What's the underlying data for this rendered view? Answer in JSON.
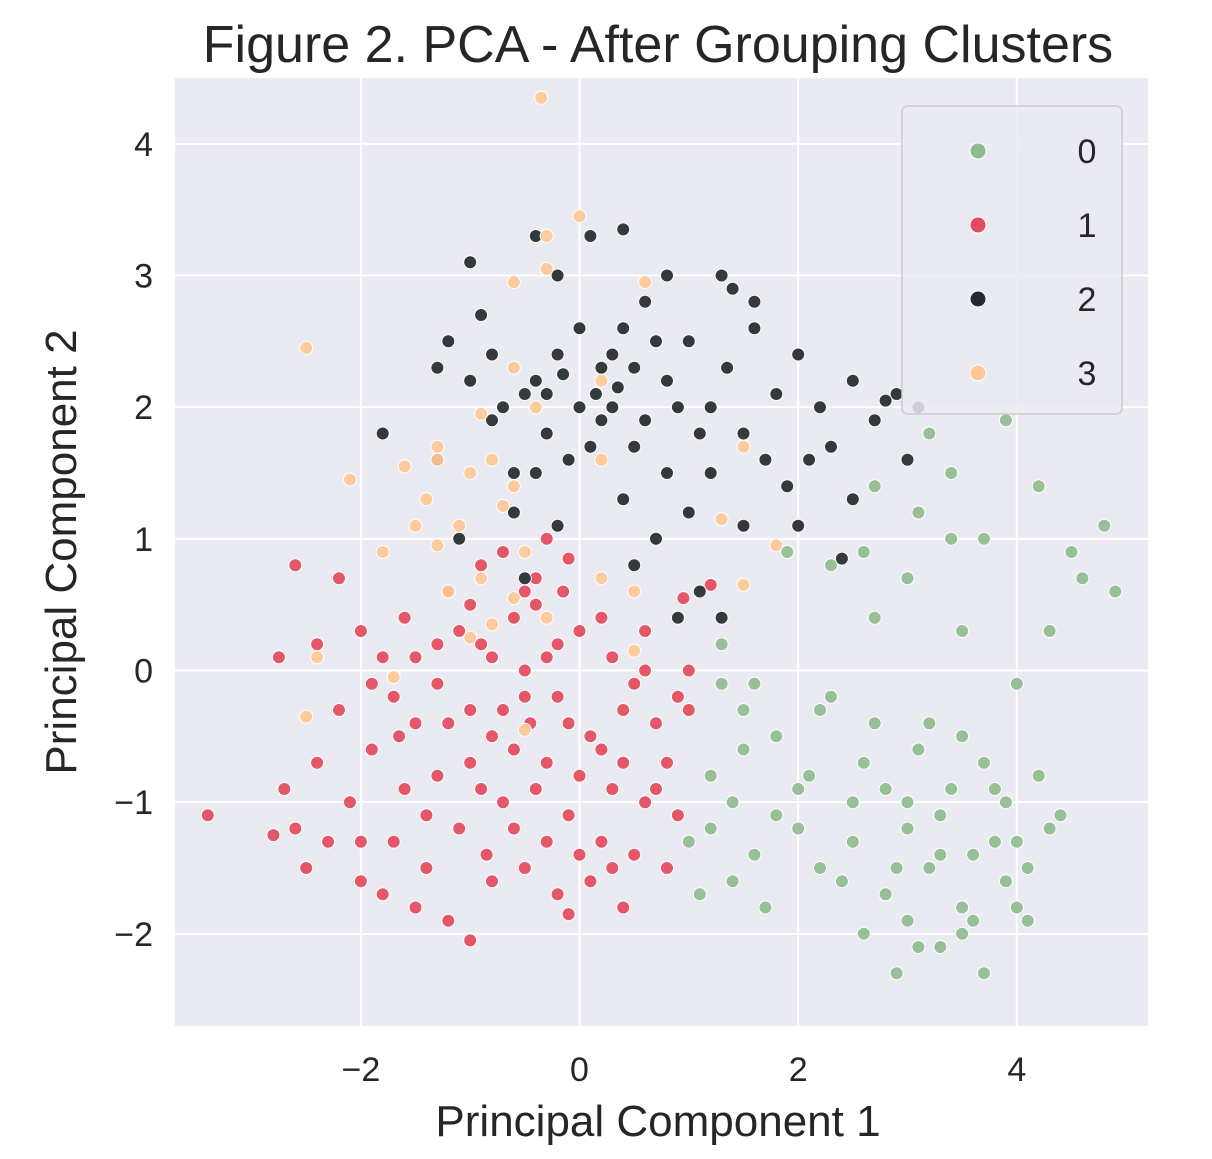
{
  "chart_data": {
    "type": "scatter",
    "title": "Figure 2. PCA - After Grouping Clusters",
    "xlabel": "Principal Component 1",
    "ylabel": "Principal Component 2",
    "xlim": [
      -3.7,
      5.2
    ],
    "ylim": [
      -2.7,
      4.5
    ],
    "xticks": [
      -2,
      0,
      2,
      4
    ],
    "yticks": [
      -2,
      -1,
      0,
      1,
      2,
      3,
      4
    ],
    "xtick_labels": [
      "−2",
      "0",
      "2",
      "4"
    ],
    "ytick_labels": [
      "−2",
      "−1",
      "0",
      "1",
      "2",
      "3",
      "4"
    ],
    "grid": true,
    "background": "#eaeaf2",
    "legend_position": "upper right",
    "legend": [
      {
        "label": "0",
        "color": "#8fbc8f"
      },
      {
        "label": "1",
        "color": "#e34a5c"
      },
      {
        "label": "2",
        "color": "#232a2d"
      },
      {
        "label": "3",
        "color": "#ffc896"
      }
    ],
    "series": [
      {
        "name": "0",
        "color": "#8fbc8f",
        "points": [
          [
            3.0,
            -1.2
          ],
          [
            3.2,
            -1.5
          ],
          [
            2.8,
            -0.9
          ],
          [
            3.5,
            -1.8
          ],
          [
            3.9,
            -1.0
          ],
          [
            4.1,
            -1.5
          ],
          [
            4.3,
            -1.2
          ],
          [
            3.7,
            -0.7
          ],
          [
            2.5,
            -1.0
          ],
          [
            2.2,
            -1.5
          ],
          [
            1.8,
            -0.5
          ],
          [
            1.5,
            -0.3
          ],
          [
            1.3,
            -0.1
          ],
          [
            1.2,
            -0.8
          ],
          [
            1.0,
            -1.3
          ],
          [
            1.1,
            -1.7
          ],
          [
            1.7,
            -1.8
          ],
          [
            2.0,
            -1.2
          ],
          [
            2.6,
            -2.0
          ],
          [
            2.9,
            -2.3
          ],
          [
            3.3,
            -2.1
          ],
          [
            3.6,
            -1.9
          ],
          [
            4.0,
            -1.8
          ],
          [
            4.4,
            -1.1
          ],
          [
            2.3,
            -0.2
          ],
          [
            2.7,
            -0.4
          ],
          [
            3.1,
            -0.6
          ],
          [
            3.4,
            -0.9
          ],
          [
            3.8,
            -1.3
          ],
          [
            4.2,
            -0.8
          ],
          [
            1.4,
            -1.0
          ],
          [
            1.6,
            -1.4
          ],
          [
            2.1,
            -0.8
          ],
          [
            2.4,
            -1.6
          ],
          [
            3.0,
            -1.9
          ],
          [
            3.2,
            -0.4
          ],
          [
            3.5,
            -0.5
          ],
          [
            4.0,
            -0.1
          ],
          [
            1.9,
            0.9
          ],
          [
            2.3,
            0.8
          ],
          [
            2.7,
            0.4
          ],
          [
            3.0,
            0.7
          ],
          [
            3.4,
            1.0
          ],
          [
            3.7,
            1.0
          ],
          [
            3.9,
            1.9
          ],
          [
            4.2,
            1.4
          ],
          [
            4.5,
            0.9
          ],
          [
            4.6,
            0.7
          ],
          [
            4.8,
            1.1
          ],
          [
            4.9,
            0.6
          ],
          [
            4.3,
            0.3
          ],
          [
            3.5,
            0.3
          ],
          [
            2.6,
            0.9
          ],
          [
            3.1,
            1.2
          ],
          [
            3.2,
            1.8
          ],
          [
            3.4,
            1.5
          ],
          [
            2.7,
            1.4
          ],
          [
            1.3,
            0.2
          ],
          [
            1.6,
            -0.1
          ],
          [
            2.0,
            -0.9
          ],
          [
            2.9,
            -1.5
          ],
          [
            3.3,
            -1.1
          ],
          [
            3.6,
            -1.4
          ],
          [
            3.9,
            -1.6
          ],
          [
            1.2,
            -1.2
          ],
          [
            1.5,
            -0.6
          ],
          [
            2.5,
            -1.3
          ],
          [
            2.8,
            -1.7
          ],
          [
            3.1,
            -2.1
          ],
          [
            3.7,
            -2.3
          ],
          [
            2.2,
            -0.3
          ],
          [
            4.1,
            -1.9
          ],
          [
            1.4,
            -1.6
          ],
          [
            1.8,
            -1.1
          ],
          [
            2.6,
            -0.7
          ],
          [
            3.8,
            -0.9
          ],
          [
            4.0,
            -1.3
          ],
          [
            3.0,
            -1.0
          ],
          [
            3.3,
            -1.4
          ],
          [
            3.5,
            -2.0
          ]
        ]
      },
      {
        "name": "1",
        "color": "#e34a5c",
        "points": [
          [
            -1.0,
            -0.3
          ],
          [
            -0.8,
            -0.5
          ],
          [
            -0.5,
            -0.2
          ],
          [
            -0.3,
            0.1
          ],
          [
            -0.1,
            -0.4
          ],
          [
            0.2,
            -0.6
          ],
          [
            0.4,
            -0.3
          ],
          [
            0.6,
            0.0
          ],
          [
            0.8,
            -0.7
          ],
          [
            0.9,
            -1.1
          ],
          [
            -1.3,
            -0.8
          ],
          [
            -1.5,
            -0.4
          ],
          [
            -1.7,
            -0.2
          ],
          [
            -1.9,
            -0.6
          ],
          [
            -2.1,
            -1.0
          ],
          [
            -2.3,
            -1.3
          ],
          [
            -2.5,
            -1.5
          ],
          [
            -2.7,
            -0.9
          ],
          [
            -3.4,
            -1.1
          ],
          [
            -2.8,
            -1.25
          ],
          [
            -2.6,
            0.8
          ],
          [
            -2.2,
            0.7
          ],
          [
            -2.0,
            0.3
          ],
          [
            -1.6,
            0.4
          ],
          [
            -1.2,
            0.6
          ],
          [
            -0.9,
            0.2
          ],
          [
            -0.6,
            0.4
          ],
          [
            -0.4,
            0.5
          ],
          [
            -0.2,
            0.2
          ],
          [
            0.0,
            0.3
          ],
          [
            0.3,
            0.1
          ],
          [
            0.5,
            -0.1
          ],
          [
            0.7,
            -0.4
          ],
          [
            0.9,
            -0.2
          ],
          [
            1.0,
            0.0
          ],
          [
            -1.1,
            -1.2
          ],
          [
            -0.7,
            -1.0
          ],
          [
            -0.4,
            -0.9
          ],
          [
            -0.1,
            -1.1
          ],
          [
            0.2,
            -1.3
          ],
          [
            0.5,
            -1.4
          ],
          [
            0.8,
            -1.5
          ],
          [
            -1.4,
            -1.5
          ],
          [
            -1.8,
            -1.7
          ],
          [
            -1.2,
            -1.9
          ],
          [
            -1.0,
            -2.05
          ],
          [
            -0.8,
            -1.6
          ],
          [
            -0.5,
            -1.5
          ],
          [
            -0.2,
            -1.7
          ],
          [
            0.1,
            -1.6
          ],
          [
            0.4,
            -1.8
          ],
          [
            -0.1,
            -1.85
          ],
          [
            -0.9,
            0.8
          ],
          [
            -0.7,
            0.9
          ],
          [
            -0.4,
            0.7
          ],
          [
            -0.1,
            0.85
          ],
          [
            -0.3,
            1.0
          ],
          [
            -0.5,
            0.6
          ],
          [
            -1.5,
            0.1
          ],
          [
            -1.3,
            -0.1
          ],
          [
            -1.6,
            -0.9
          ],
          [
            -1.4,
            -1.1
          ],
          [
            -1.0,
            -0.7
          ],
          [
            -0.6,
            -0.6
          ],
          [
            -0.3,
            -0.7
          ],
          [
            0.0,
            -0.8
          ],
          [
            0.3,
            -0.9
          ],
          [
            0.6,
            -1.0
          ],
          [
            -2.2,
            -0.3
          ],
          [
            -2.4,
            0.2
          ],
          [
            -1.8,
            0.1
          ],
          [
            -1.7,
            -1.3
          ],
          [
            -2.0,
            -1.6
          ],
          [
            -1.1,
            0.3
          ],
          [
            -0.8,
            0.1
          ],
          [
            -0.2,
            -0.2
          ],
          [
            0.1,
            -0.5
          ],
          [
            0.4,
            -0.7
          ],
          [
            0.7,
            -0.9
          ],
          [
            1.0,
            -0.3
          ],
          [
            -1.2,
            -0.4
          ],
          [
            -0.9,
            -0.9
          ],
          [
            -0.6,
            -1.2
          ],
          [
            -0.3,
            -1.3
          ],
          [
            0.0,
            -1.4
          ],
          [
            0.3,
            -1.5
          ],
          [
            -1.5,
            -1.8
          ],
          [
            -2.6,
            -1.2
          ],
          [
            -2.0,
            -1.3
          ],
          [
            -1.0,
            0.5
          ],
          [
            -0.5,
            0.0
          ],
          [
            0.2,
            0.4
          ],
          [
            0.6,
            0.3
          ],
          [
            -1.9,
            -0.1
          ],
          [
            -1.3,
            0.2
          ],
          [
            -0.7,
            -0.3
          ],
          [
            1.2,
            0.65
          ],
          [
            0.95,
            0.55
          ],
          [
            -0.15,
            0.6
          ],
          [
            -0.45,
            -0.4
          ],
          [
            -0.85,
            -1.4
          ],
          [
            -1.65,
            -0.5
          ],
          [
            -2.4,
            -0.7
          ],
          [
            -2.75,
            0.1
          ]
        ]
      },
      {
        "name": "2",
        "color": "#232a2d",
        "points": [
          [
            0.0,
            2.0
          ],
          [
            0.2,
            2.3
          ],
          [
            -0.2,
            2.4
          ],
          [
            -0.5,
            2.1
          ],
          [
            0.4,
            2.6
          ],
          [
            0.6,
            2.8
          ],
          [
            0.8,
            2.2
          ],
          [
            1.0,
            2.5
          ],
          [
            1.2,
            2.0
          ],
          [
            1.4,
            2.9
          ],
          [
            1.6,
            2.6
          ],
          [
            1.8,
            2.1
          ],
          [
            2.0,
            2.4
          ],
          [
            2.2,
            2.0
          ],
          [
            2.5,
            2.2
          ],
          [
            2.7,
            1.9
          ],
          [
            2.9,
            2.1
          ],
          [
            3.1,
            2.0
          ],
          [
            3.0,
            1.6
          ],
          [
            2.5,
            1.3
          ],
          [
            2.0,
            1.1
          ],
          [
            1.5,
            1.1
          ],
          [
            1.2,
            1.5
          ],
          [
            1.0,
            1.2
          ],
          [
            0.8,
            1.5
          ],
          [
            0.5,
            1.7
          ],
          [
            0.2,
            1.9
          ],
          [
            -0.1,
            1.6
          ],
          [
            -0.3,
            1.8
          ],
          [
            -0.6,
            1.5
          ],
          [
            -0.8,
            1.9
          ],
          [
            -1.0,
            2.2
          ],
          [
            -1.2,
            2.5
          ],
          [
            -1.3,
            1.6
          ],
          [
            -1.8,
            1.8
          ],
          [
            -1.3,
            2.3
          ],
          [
            -0.9,
            2.7
          ],
          [
            -1.0,
            3.1
          ],
          [
            -0.4,
            3.3
          ],
          [
            -0.2,
            3.0
          ],
          [
            0.1,
            3.3
          ],
          [
            0.4,
            3.35
          ],
          [
            0.8,
            3.0
          ],
          [
            1.3,
            3.0
          ],
          [
            1.6,
            2.8
          ],
          [
            0.3,
            2.0
          ],
          [
            0.6,
            1.9
          ],
          [
            0.9,
            2.0
          ],
          [
            -0.4,
            2.2
          ],
          [
            -0.7,
            2.0
          ],
          [
            0.1,
            1.7
          ],
          [
            0.4,
            1.3
          ],
          [
            0.7,
            1.0
          ],
          [
            1.1,
            0.6
          ],
          [
            1.3,
            0.4
          ],
          [
            0.9,
            0.4
          ],
          [
            0.5,
            0.8
          ],
          [
            -0.2,
            1.1
          ],
          [
            -0.6,
            1.2
          ],
          [
            -1.1,
            1.0
          ],
          [
            -0.5,
            0.7
          ],
          [
            2.4,
            0.85
          ],
          [
            1.7,
            1.6
          ],
          [
            2.3,
            1.7
          ],
          [
            2.8,
            2.05
          ],
          [
            0.0,
            2.6
          ],
          [
            0.3,
            2.4
          ],
          [
            -0.3,
            2.1
          ],
          [
            0.5,
            2.3
          ],
          [
            1.1,
            1.8
          ],
          [
            1.9,
            1.4
          ],
          [
            -0.8,
            2.4
          ],
          [
            0.7,
            2.5
          ],
          [
            1.5,
            1.8
          ],
          [
            2.1,
            1.6
          ],
          [
            -0.4,
            1.5
          ],
          [
            0.15,
            2.1
          ],
          [
            -0.15,
            2.25
          ],
          [
            0.35,
            2.15
          ],
          [
            1.35,
            2.3
          ]
        ]
      },
      {
        "name": "3",
        "color": "#ffc896",
        "points": [
          [
            -0.35,
            4.35
          ],
          [
            0.0,
            3.45
          ],
          [
            -0.3,
            3.3
          ],
          [
            -0.6,
            2.95
          ],
          [
            -0.3,
            3.05
          ],
          [
            0.6,
            2.95
          ],
          [
            -2.5,
            2.45
          ],
          [
            -2.1,
            1.45
          ],
          [
            -1.6,
            1.55
          ],
          [
            -1.3,
            1.6
          ],
          [
            -1.0,
            1.5
          ],
          [
            -0.8,
            1.6
          ],
          [
            -1.4,
            1.3
          ],
          [
            -1.1,
            1.1
          ],
          [
            -0.7,
            1.25
          ],
          [
            -1.5,
            1.1
          ],
          [
            -1.8,
            0.9
          ],
          [
            -1.3,
            0.95
          ],
          [
            -1.2,
            0.6
          ],
          [
            -0.9,
            0.7
          ],
          [
            -0.5,
            0.9
          ],
          [
            0.2,
            0.7
          ],
          [
            0.5,
            0.6
          ],
          [
            1.5,
            0.65
          ],
          [
            1.8,
            0.95
          ],
          [
            1.3,
            1.15
          ],
          [
            1.5,
            1.7
          ],
          [
            0.2,
            1.6
          ],
          [
            -0.4,
            2.0
          ],
          [
            -0.6,
            1.4
          ],
          [
            -0.8,
            0.35
          ],
          [
            -0.3,
            0.4
          ],
          [
            -0.6,
            0.55
          ],
          [
            -1.0,
            0.25
          ],
          [
            -2.4,
            0.1
          ],
          [
            -2.5,
            -0.35
          ],
          [
            -1.7,
            -0.05
          ],
          [
            -0.5,
            -0.45
          ],
          [
            0.5,
            0.15
          ],
          [
            -1.3,
            1.7
          ],
          [
            -0.9,
            1.95
          ],
          [
            0.2,
            2.2
          ],
          [
            -0.6,
            2.3
          ]
        ]
      }
    ]
  }
}
